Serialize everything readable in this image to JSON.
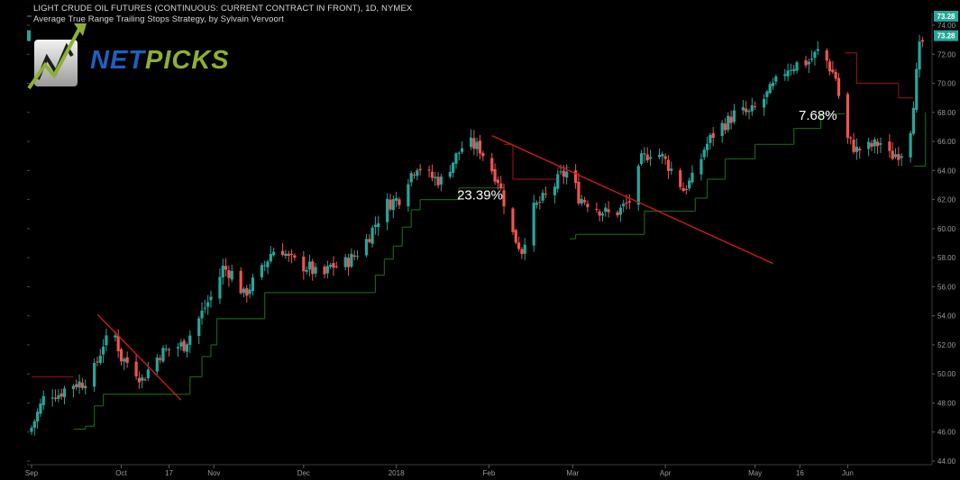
{
  "header": {
    "title": "LIGHT CRUDE OIL FUTURES (CONTINUOUS: CURRENT CONTRACT IN FRONT), 1D, NYMEX",
    "subtitle": "Average True Range Trailing Stops Strategy, by Sylvain Vervoort"
  },
  "logo": {
    "part1": "NET",
    "part2": "PICKS",
    "icon": "chart-arrow-icon"
  },
  "colors": {
    "background": "#000000",
    "up": "#26a69a",
    "down": "#ef5350",
    "trend_line": "#cc1a1a",
    "stop_long": "#1b5e1b",
    "stop_short": "#8b1010",
    "axis_text": "#9a9a9a",
    "price_badge": "#26a69a"
  },
  "chart_data": {
    "type": "candlestick",
    "title": "LIGHT CRUDE OIL FUTURES (CONTINUOUS: CURRENT CONTRACT IN FRONT), 1D, NYMEX",
    "subtitle": "Average True Range Trailing Stops Strategy, by Sylvain Vervoort",
    "ylim": [
      44,
      74
    ],
    "y_ticks": [
      "44.00",
      "46.00",
      "48.00",
      "50.00",
      "52.00",
      "54.00",
      "56.00",
      "58.00",
      "60.00",
      "62.00",
      "64.00",
      "66.00",
      "68.00",
      "70.00",
      "72.00",
      "74.00"
    ],
    "x_ticks": [
      {
        "label": "Sep",
        "day": 0
      },
      {
        "label": "Oct",
        "day": 30
      },
      {
        "label": "17",
        "day": 46
      },
      {
        "label": "Nov",
        "day": 61
      },
      {
        "label": "Dec",
        "day": 91
      },
      {
        "label": "2018",
        "day": 122
      },
      {
        "label": "Feb",
        "day": 153
      },
      {
        "label": "Mar",
        "day": 181
      },
      {
        "label": "Apr",
        "day": 212
      },
      {
        "label": "May",
        "day": 242
      },
      {
        "label": "16",
        "day": 257
      },
      {
        "label": "Jun",
        "day": 273
      }
    ],
    "last_price": "73.28",
    "x_range_days": [
      0,
      300
    ],
    "close_path": [
      [
        0,
        46.3
      ],
      [
        5,
        48.8
      ],
      [
        9,
        48.6
      ],
      [
        13,
        49.3
      ],
      [
        17,
        49.4
      ],
      [
        21,
        50.3
      ],
      [
        24,
        52.1
      ],
      [
        28,
        52.6
      ],
      [
        30,
        51.1
      ],
      [
        34,
        50.5
      ],
      [
        37,
        49.6
      ],
      [
        40,
        50.6
      ],
      [
        43,
        51.4
      ],
      [
        47,
        51.8
      ],
      [
        51,
        52.0
      ],
      [
        55,
        53.4
      ],
      [
        58,
        54.6
      ],
      [
        61,
        55.6
      ],
      [
        64,
        57.3
      ],
      [
        68,
        56.8
      ],
      [
        71,
        55.4
      ],
      [
        74,
        56.3
      ],
      [
        77,
        57.1
      ],
      [
        80,
        58.3
      ],
      [
        83,
        58.9
      ],
      [
        86,
        57.9
      ],
      [
        90,
        57.5
      ],
      [
        93,
        57.3
      ],
      [
        97,
        56.5
      ],
      [
        100,
        57.4
      ],
      [
        104,
        57.5
      ],
      [
        108,
        58.1
      ],
      [
        112,
        59.2
      ],
      [
        116,
        60.7
      ],
      [
        119,
        61.7
      ],
      [
        123,
        62.1
      ],
      [
        126,
        63.5
      ],
      [
        129,
        64.4
      ],
      [
        133,
        63.6
      ],
      [
        137,
        63.3
      ],
      [
        140,
        64.3
      ],
      [
        144,
        65.6
      ],
      [
        147,
        65.8
      ],
      [
        150,
        65.5
      ],
      [
        153,
        64.4
      ],
      [
        156,
        63.4
      ],
      [
        158,
        61.9
      ],
      [
        161,
        59.6
      ],
      [
        164,
        58.5
      ],
      [
        167,
        61.1
      ],
      [
        170,
        61.8
      ],
      [
        173,
        62.4
      ],
      [
        177,
        63.6
      ],
      [
        180,
        64.0
      ],
      [
        183,
        62.2
      ],
      [
        187,
        61.7
      ],
      [
        191,
        61.2
      ],
      [
        194,
        60.9
      ],
      [
        197,
        61.3
      ],
      [
        201,
        62.1
      ],
      [
        204,
        64.7
      ],
      [
        208,
        65.5
      ],
      [
        211,
        64.9
      ],
      [
        215,
        63.8
      ],
      [
        218,
        62.7
      ],
      [
        222,
        63.6
      ],
      [
        225,
        65.5
      ],
      [
        229,
        66.8
      ],
      [
        233,
        67.4
      ],
      [
        236,
        68.1
      ],
      [
        240,
        67.9
      ],
      [
        243,
        68.4
      ],
      [
        246,
        69.2
      ],
      [
        250,
        70.3
      ],
      [
        253,
        71.1
      ],
      [
        257,
        71.4
      ],
      [
        260,
        71.5
      ],
      [
        264,
        72.4
      ],
      [
        267,
        71.1
      ],
      [
        269,
        70.4
      ],
      [
        271,
        67.9
      ],
      [
        273,
        66.1
      ],
      [
        276,
        65.4
      ],
      [
        280,
        65.6
      ],
      [
        284,
        65.9
      ],
      [
        287,
        65.0
      ],
      [
        291,
        65.3
      ],
      [
        294,
        67.0
      ],
      [
        297,
        72.4
      ],
      [
        299,
        73.28
      ]
    ],
    "annotations": [
      {
        "text": "23.39%",
        "day": 150,
        "price": 62.0
      },
      {
        "text": "7.68%",
        "day": 263,
        "price": 67.5
      }
    ],
    "trend_lines": [
      {
        "from": [
          22,
          54.1
        ],
        "to": [
          50,
          48.2
        ]
      },
      {
        "from": [
          154,
          66.4
        ],
        "to": [
          248,
          57.6
        ]
      }
    ],
    "trailing_stop": [
      {
        "day": 0,
        "price": 49.8,
        "side": "short"
      },
      {
        "day": 13,
        "price": 49.8,
        "side": "short"
      },
      {
        "day": 14,
        "price": 46.2,
        "side": "long"
      },
      {
        "day": 18,
        "price": 46.4,
        "side": "long"
      },
      {
        "day": 21,
        "price": 47.8,
        "side": "long"
      },
      {
        "day": 24,
        "price": 48.6,
        "side": "long"
      },
      {
        "day": 51,
        "price": 48.6,
        "side": "long"
      },
      {
        "day": 53,
        "price": 49.8,
        "side": "long"
      },
      {
        "day": 57,
        "price": 51.2,
        "side": "long"
      },
      {
        "day": 60,
        "price": 52.0,
        "side": "long"
      },
      {
        "day": 62,
        "price": 53.8,
        "side": "long"
      },
      {
        "day": 76,
        "price": 53.8,
        "side": "long"
      },
      {
        "day": 78,
        "price": 55.6,
        "side": "long"
      },
      {
        "day": 113,
        "price": 55.6,
        "side": "long"
      },
      {
        "day": 115,
        "price": 56.8,
        "side": "long"
      },
      {
        "day": 118,
        "price": 57.9,
        "side": "long"
      },
      {
        "day": 121,
        "price": 58.8,
        "side": "long"
      },
      {
        "day": 124,
        "price": 60.1,
        "side": "long"
      },
      {
        "day": 127,
        "price": 61.3,
        "side": "long"
      },
      {
        "day": 130,
        "price": 62.0,
        "side": "long"
      },
      {
        "day": 141,
        "price": 62.0,
        "side": "long"
      },
      {
        "day": 143,
        "price": 62.8,
        "side": "long"
      },
      {
        "day": 157,
        "price": 62.8,
        "side": "long"
      },
      {
        "day": 158,
        "price": 65.8,
        "side": "short"
      },
      {
        "day": 161,
        "price": 63.4,
        "side": "short"
      },
      {
        "day": 174,
        "price": 63.4,
        "side": "short"
      },
      {
        "day": 176,
        "price": 64.2,
        "side": "short"
      },
      {
        "day": 179,
        "price": 64.2,
        "side": "short"
      },
      {
        "day": 180,
        "price": 59.3,
        "side": "long"
      },
      {
        "day": 182,
        "price": 59.6,
        "side": "long"
      },
      {
        "day": 203,
        "price": 59.6,
        "side": "long"
      },
      {
        "day": 205,
        "price": 61.2,
        "side": "long"
      },
      {
        "day": 220,
        "price": 61.2,
        "side": "long"
      },
      {
        "day": 222,
        "price": 62.1,
        "side": "long"
      },
      {
        "day": 226,
        "price": 63.4,
        "side": "long"
      },
      {
        "day": 232,
        "price": 64.8,
        "side": "long"
      },
      {
        "day": 240,
        "price": 64.8,
        "side": "long"
      },
      {
        "day": 242,
        "price": 65.8,
        "side": "long"
      },
      {
        "day": 253,
        "price": 65.8,
        "side": "long"
      },
      {
        "day": 255,
        "price": 66.9,
        "side": "long"
      },
      {
        "day": 264,
        "price": 67.9,
        "side": "long"
      },
      {
        "day": 271,
        "price": 67.9,
        "side": "long"
      },
      {
        "day": 272,
        "price": 72.1,
        "side": "short"
      },
      {
        "day": 276,
        "price": 70.0,
        "side": "short"
      },
      {
        "day": 289,
        "price": 70.0,
        "side": "short"
      },
      {
        "day": 290,
        "price": 69.0,
        "side": "short"
      },
      {
        "day": 294,
        "price": 69.0,
        "side": "short"
      },
      {
        "day": 295,
        "price": 64.3,
        "side": "long"
      },
      {
        "day": 297,
        "price": 64.3,
        "side": "long"
      },
      {
        "day": 299,
        "price": 68.0,
        "side": "long"
      }
    ]
  }
}
